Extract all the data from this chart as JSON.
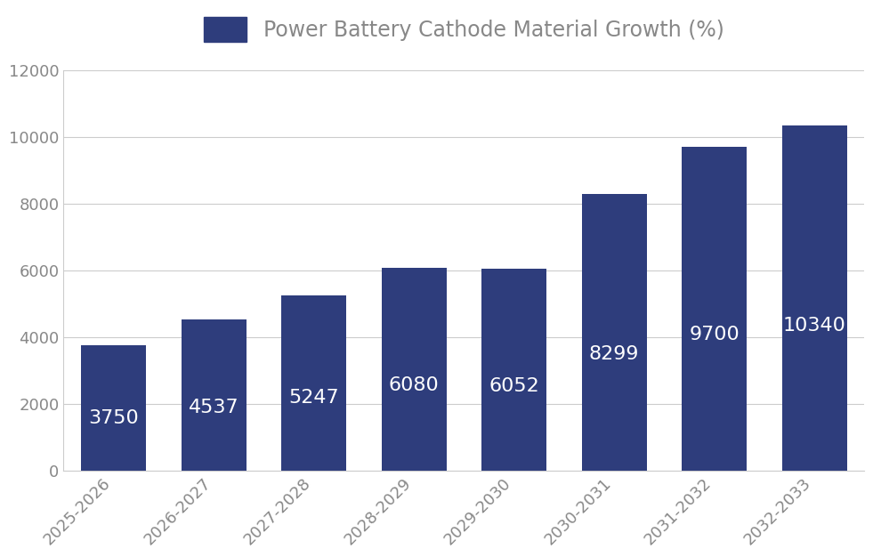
{
  "categories": [
    "2025-2026",
    "2026-2027",
    "2027-2028",
    "2028-2029",
    "2029-2030",
    "2030-2031",
    "2031-2032",
    "2032-2033"
  ],
  "values": [
    3750,
    4537,
    5247,
    6080,
    6052,
    8299,
    9700,
    10340
  ],
  "bar_color": "#2e3d7c",
  "title": "Power Battery Cathode Material Growth (%)",
  "ylim": [
    0,
    12000
  ],
  "yticks": [
    0,
    2000,
    4000,
    6000,
    8000,
    10000,
    12000
  ],
  "label_color": "#ffffff",
  "label_fontsize": 16,
  "tick_fontsize": 13,
  "legend_fontsize": 17,
  "background_color": "#ffffff",
  "grid_color": "#cccccc",
  "bar_color_legend": "#2e3d7c",
  "spine_color": "#cccccc"
}
